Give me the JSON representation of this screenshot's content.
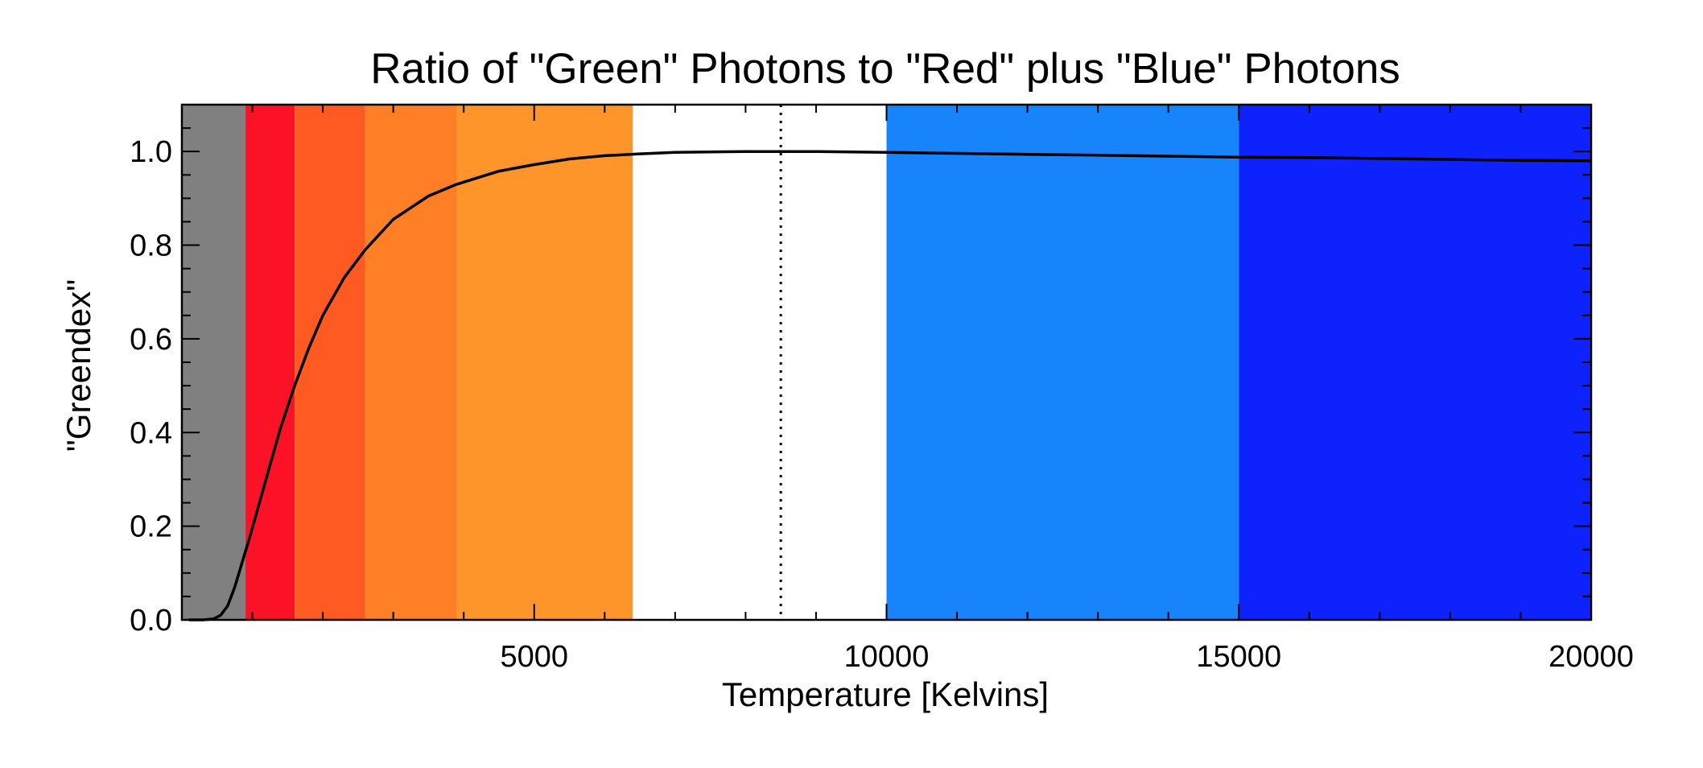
{
  "chart_data": {
    "type": "line",
    "title": "Ratio of \"Green\" Photons to \"Red\" plus \"Blue\" Photons",
    "xlabel": "Temperature [Kelvins]",
    "ylabel": "\"Greendex\"",
    "xlim": [
      0,
      20000
    ],
    "ylim": [
      0,
      1.1
    ],
    "x_ticks": [
      {
        "value": 5000,
        "label": "5000"
      },
      {
        "value": 10000,
        "label": "10000"
      },
      {
        "value": 15000,
        "label": "15000"
      },
      {
        "value": 20000,
        "label": "20000"
      }
    ],
    "y_ticks": [
      {
        "value": 0.0,
        "label": "0.0"
      },
      {
        "value": 0.2,
        "label": "0.2"
      },
      {
        "value": 0.4,
        "label": "0.4"
      },
      {
        "value": 0.6,
        "label": "0.6"
      },
      {
        "value": 0.8,
        "label": "0.8"
      },
      {
        "value": 1.0,
        "label": "1.0"
      }
    ],
    "x_minor_step": 1000,
    "y_minor_step": 0.05,
    "bands": [
      {
        "x0": 0,
        "x1": 900,
        "color": "#808080"
      },
      {
        "x0": 900,
        "x1": 1600,
        "color": "#fc1226"
      },
      {
        "x0": 1600,
        "x1": 2600,
        "color": "#fe5a22"
      },
      {
        "x0": 2600,
        "x1": 3900,
        "color": "#fe7f26"
      },
      {
        "x0": 3900,
        "x1": 6400,
        "color": "#fe952b"
      },
      {
        "x0": 6400,
        "x1": 10000,
        "color": "#ffffff"
      },
      {
        "x0": 10000,
        "x1": 15000,
        "color": "#1784fc"
      },
      {
        "x0": 15000,
        "x1": 20000,
        "color": "#0d22fd"
      }
    ],
    "reference_line": {
      "x": 8500,
      "style": "dotted"
    },
    "series": [
      {
        "color": "#000000",
        "x": [
          100,
          300,
          450,
          550,
          650,
          750,
          850,
          950,
          1100,
          1250,
          1400,
          1600,
          1800,
          2000,
          2300,
          2600,
          3000,
          3500,
          3900,
          4500,
          5000,
          5500,
          6000,
          6500,
          7000,
          8000,
          8500,
          9000,
          10000,
          11000,
          12000,
          13000,
          14000,
          15000,
          16000,
          17000,
          18000,
          19000,
          20000
        ],
        "y": [
          0.0,
          0.0,
          0.002,
          0.01,
          0.03,
          0.07,
          0.12,
          0.17,
          0.25,
          0.33,
          0.41,
          0.5,
          0.58,
          0.65,
          0.73,
          0.79,
          0.855,
          0.905,
          0.93,
          0.958,
          0.972,
          0.984,
          0.991,
          0.995,
          0.998,
          1.0,
          1.0,
          1.0,
          0.998,
          0.996,
          0.994,
          0.992,
          0.99,
          0.988,
          0.987,
          0.985,
          0.983,
          0.981,
          0.98
        ]
      }
    ]
  }
}
